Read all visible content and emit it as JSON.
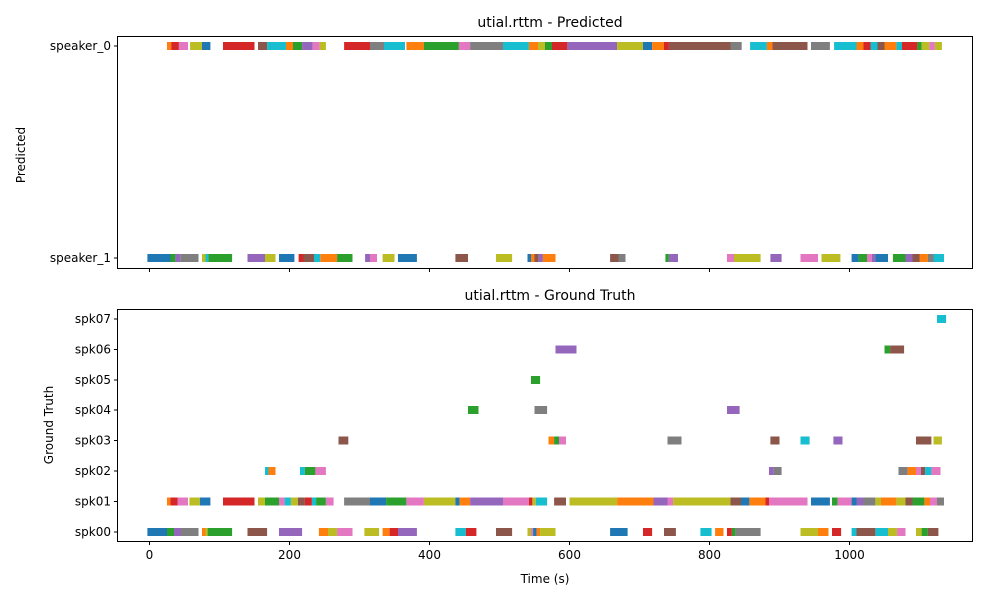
{
  "chart_data": [
    {
      "type": "timeline",
      "title": "utial.rttm - Predicted",
      "xlabel": "",
      "ylabel": "Predicted",
      "xlim": [
        -45,
        1175
      ],
      "xticks": [
        0,
        200,
        400,
        600,
        800,
        1000
      ],
      "show_x_tick_labels": false,
      "grid": false,
      "legend": "none",
      "rows": [
        "speaker_1",
        "speaker_0"
      ],
      "segments": [
        [
          1,
          25,
          31,
          "#ff7f0e"
        ],
        [
          1,
          31,
          42,
          "#d62728"
        ],
        [
          1,
          42,
          55,
          "#e377c2"
        ],
        [
          1,
          58,
          75,
          "#bcbd22"
        ],
        [
          1,
          75,
          87,
          "#1f77b4"
        ],
        [
          1,
          105,
          150,
          "#d62728"
        ],
        [
          1,
          155,
          168,
          "#8c564b"
        ],
        [
          1,
          168,
          195,
          "#17becf"
        ],
        [
          1,
          195,
          205,
          "#ff7f0e"
        ],
        [
          1,
          205,
          218,
          "#2ca02c"
        ],
        [
          1,
          218,
          233,
          "#9467bd"
        ],
        [
          1,
          233,
          243,
          "#e377c2"
        ],
        [
          1,
          243,
          252,
          "#bcbd22"
        ],
        [
          1,
          278,
          315,
          "#d62728"
        ],
        [
          1,
          315,
          335,
          "#7f7f7f"
        ],
        [
          1,
          335,
          365,
          "#17becf"
        ],
        [
          1,
          367,
          392,
          "#ff7f0e"
        ],
        [
          1,
          392,
          442,
          "#2ca02c"
        ],
        [
          1,
          442,
          458,
          "#e377c2"
        ],
        [
          1,
          458,
          505,
          "#7f7f7f"
        ],
        [
          1,
          505,
          542,
          "#17becf"
        ],
        [
          1,
          542,
          555,
          "#ff7f0e"
        ],
        [
          1,
          555,
          565,
          "#bcbd22"
        ],
        [
          1,
          565,
          575,
          "#2ca02c"
        ],
        [
          1,
          575,
          597,
          "#d62728"
        ],
        [
          1,
          597,
          668,
          "#9467bd"
        ],
        [
          1,
          668,
          705,
          "#bcbd22"
        ],
        [
          1,
          705,
          718,
          "#1f77b4"
        ],
        [
          1,
          718,
          735,
          "#ff7f0e"
        ],
        [
          1,
          735,
          742,
          "#d62728"
        ],
        [
          1,
          742,
          830,
          "#8c564b"
        ],
        [
          1,
          830,
          846,
          "#7f7f7f"
        ],
        [
          1,
          858,
          882,
          "#17becf"
        ],
        [
          1,
          882,
          890,
          "#ff7f0e"
        ],
        [
          1,
          890,
          940,
          "#8c564b"
        ],
        [
          1,
          945,
          972,
          "#7f7f7f"
        ],
        [
          1,
          978,
          1010,
          "#17becf"
        ],
        [
          1,
          1010,
          1020,
          "#ff7f0e"
        ],
        [
          1,
          1020,
          1030,
          "#d62728"
        ],
        [
          1,
          1030,
          1040,
          "#17becf"
        ],
        [
          1,
          1040,
          1050,
          "#8c564b"
        ],
        [
          1,
          1050,
          1067,
          "#ff7f0e"
        ],
        [
          1,
          1067,
          1075,
          "#17becf"
        ],
        [
          1,
          1075,
          1097,
          "#d62728"
        ],
        [
          1,
          1097,
          1103,
          "#2ca02c"
        ],
        [
          1,
          1103,
          1114,
          "#bcbd22"
        ],
        [
          1,
          1114,
          1122,
          "#e377c2"
        ],
        [
          1,
          1122,
          1132,
          "#bcbd22"
        ],
        [
          0,
          -3,
          30,
          "#1f77b4"
        ],
        [
          0,
          30,
          37,
          "#2ca02c"
        ],
        [
          0,
          37,
          44,
          "#9467bd"
        ],
        [
          0,
          44,
          70,
          "#7f7f7f"
        ],
        [
          0,
          75,
          80,
          "#bcbd22"
        ],
        [
          0,
          80,
          84,
          "#17becf"
        ],
        [
          0,
          84,
          118,
          "#2ca02c"
        ],
        [
          0,
          140,
          165,
          "#9467bd"
        ],
        [
          0,
          165,
          180,
          "#bcbd22"
        ],
        [
          0,
          185,
          207,
          "#1f77b4"
        ],
        [
          0,
          213,
          220,
          "#d62728"
        ],
        [
          0,
          220,
          235,
          "#8c564b"
        ],
        [
          0,
          235,
          244,
          "#17becf"
        ],
        [
          0,
          244,
          268,
          "#ff7f0e"
        ],
        [
          0,
          268,
          290,
          "#2ca02c"
        ],
        [
          0,
          308,
          315,
          "#9467bd"
        ],
        [
          0,
          315,
          325,
          "#e377c2"
        ],
        [
          0,
          333,
          350,
          "#bcbd22"
        ],
        [
          0,
          355,
          382,
          "#1f77b4"
        ],
        [
          0,
          437,
          455,
          "#8c564b"
        ],
        [
          0,
          495,
          518,
          "#bcbd22"
        ],
        [
          0,
          540,
          545,
          "#1f77b4"
        ],
        [
          0,
          545,
          550,
          "#ff7f0e"
        ],
        [
          0,
          550,
          556,
          "#8c564b"
        ],
        [
          0,
          556,
          562,
          "#9467bd"
        ],
        [
          0,
          562,
          580,
          "#ff7f0e"
        ],
        [
          0,
          658,
          670,
          "#8c564b"
        ],
        [
          0,
          670,
          680,
          "#7f7f7f"
        ],
        [
          0,
          737,
          742,
          "#2ca02c"
        ],
        [
          0,
          742,
          755,
          "#9467bd"
        ],
        [
          0,
          825,
          835,
          "#e377c2"
        ],
        [
          0,
          835,
          873,
          "#bcbd22"
        ],
        [
          0,
          887,
          903,
          "#9467bd"
        ],
        [
          0,
          930,
          955,
          "#e377c2"
        ],
        [
          0,
          960,
          987,
          "#bcbd22"
        ],
        [
          0,
          1003,
          1013,
          "#1f77b4"
        ],
        [
          0,
          1013,
          1025,
          "#2ca02c"
        ],
        [
          0,
          1025,
          1032,
          "#e377c2"
        ],
        [
          0,
          1032,
          1037,
          "#9467bd"
        ],
        [
          0,
          1037,
          1055,
          "#1f77b4"
        ],
        [
          0,
          1062,
          1080,
          "#2ca02c"
        ],
        [
          0,
          1080,
          1090,
          "#9467bd"
        ],
        [
          0,
          1090,
          1100,
          "#8c564b"
        ],
        [
          0,
          1100,
          1112,
          "#ff7f0e"
        ],
        [
          0,
          1112,
          1120,
          "#7f7f7f"
        ],
        [
          0,
          1120,
          1135,
          "#17becf"
        ]
      ]
    },
    {
      "type": "timeline",
      "title": "utial.rttm - Ground Truth",
      "xlabel": "Time (s)",
      "ylabel": "Ground Truth",
      "xlim": [
        -45,
        1175
      ],
      "xticks": [
        0,
        200,
        400,
        600,
        800,
        1000
      ],
      "show_x_tick_labels": true,
      "grid": false,
      "legend": "none",
      "rows": [
        "spk00",
        "spk01",
        "spk02",
        "spk03",
        "spk04",
        "spk05",
        "spk06",
        "spk07"
      ],
      "segments": [
        [
          7,
          1125,
          1138,
          "#17becf"
        ],
        [
          6,
          580,
          610,
          "#9467bd"
        ],
        [
          6,
          1050,
          1058,
          "#2ca02c"
        ],
        [
          6,
          1058,
          1078,
          "#8c564b"
        ],
        [
          5,
          545,
          558,
          "#2ca02c"
        ],
        [
          4,
          455,
          470,
          "#2ca02c"
        ],
        [
          4,
          550,
          568,
          "#7f7f7f"
        ],
        [
          4,
          825,
          843,
          "#9467bd"
        ],
        [
          3,
          270,
          284,
          "#8c564b"
        ],
        [
          3,
          570,
          578,
          "#ff7f0e"
        ],
        [
          3,
          578,
          585,
          "#2ca02c"
        ],
        [
          3,
          585,
          595,
          "#e377c2"
        ],
        [
          3,
          740,
          760,
          "#7f7f7f"
        ],
        [
          3,
          887,
          900,
          "#8c564b"
        ],
        [
          3,
          930,
          943,
          "#17becf"
        ],
        [
          3,
          977,
          990,
          "#9467bd"
        ],
        [
          3,
          1095,
          1117,
          "#8c564b"
        ],
        [
          3,
          1120,
          1132,
          "#bcbd22"
        ],
        [
          2,
          165,
          170,
          "#17becf"
        ],
        [
          2,
          170,
          180,
          "#ff7f0e"
        ],
        [
          2,
          215,
          222,
          "#17becf"
        ],
        [
          2,
          222,
          237,
          "#2ca02c"
        ],
        [
          2,
          237,
          252,
          "#e377c2"
        ],
        [
          2,
          885,
          892,
          "#9467bd"
        ],
        [
          2,
          892,
          903,
          "#7f7f7f"
        ],
        [
          2,
          1070,
          1083,
          "#7f7f7f"
        ],
        [
          2,
          1083,
          1095,
          "#ff7f0e"
        ],
        [
          2,
          1095,
          1102,
          "#e377c2"
        ],
        [
          2,
          1102,
          1108,
          "#8c564b"
        ],
        [
          2,
          1108,
          1117,
          "#17becf"
        ],
        [
          2,
          1117,
          1130,
          "#e377c2"
        ],
        [
          1,
          25,
          30,
          "#ff7f0e"
        ],
        [
          1,
          30,
          40,
          "#d62728"
        ],
        [
          1,
          40,
          55,
          "#e377c2"
        ],
        [
          1,
          57,
          72,
          "#bcbd22"
        ],
        [
          1,
          72,
          87,
          "#1f77b4"
        ],
        [
          1,
          105,
          150,
          "#d62728"
        ],
        [
          1,
          155,
          165,
          "#bcbd22"
        ],
        [
          1,
          165,
          185,
          "#2ca02c"
        ],
        [
          1,
          185,
          193,
          "#e377c2"
        ],
        [
          1,
          193,
          202,
          "#17becf"
        ],
        [
          1,
          202,
          212,
          "#bcbd22"
        ],
        [
          1,
          212,
          222,
          "#8c564b"
        ],
        [
          1,
          222,
          232,
          "#d62728"
        ],
        [
          1,
          232,
          238,
          "#17becf"
        ],
        [
          1,
          238,
          252,
          "#2ca02c"
        ],
        [
          1,
          252,
          263,
          "#e377c2"
        ],
        [
          1,
          278,
          315,
          "#7f7f7f"
        ],
        [
          1,
          315,
          338,
          "#1f77b4"
        ],
        [
          1,
          338,
          367,
          "#2ca02c"
        ],
        [
          1,
          367,
          392,
          "#e377c2"
        ],
        [
          1,
          392,
          437,
          "#bcbd22"
        ],
        [
          1,
          437,
          443,
          "#1f77b4"
        ],
        [
          1,
          443,
          458,
          "#ff7f0e"
        ],
        [
          1,
          458,
          505,
          "#9467bd"
        ],
        [
          1,
          505,
          542,
          "#e377c2"
        ],
        [
          1,
          542,
          547,
          "#d62728"
        ],
        [
          1,
          547,
          552,
          "#bcbd22"
        ],
        [
          1,
          552,
          568,
          "#17becf"
        ],
        [
          1,
          578,
          595,
          "#8c564b"
        ],
        [
          1,
          600,
          668,
          "#bcbd22"
        ],
        [
          1,
          668,
          720,
          "#ff7f0e"
        ],
        [
          1,
          720,
          740,
          "#9467bd"
        ],
        [
          1,
          740,
          748,
          "#e377c2"
        ],
        [
          1,
          748,
          830,
          "#bcbd22"
        ],
        [
          1,
          830,
          845,
          "#8c564b"
        ],
        [
          1,
          845,
          857,
          "#1f77b4"
        ],
        [
          1,
          857,
          880,
          "#ff7f0e"
        ],
        [
          1,
          880,
          885,
          "#d62728"
        ],
        [
          1,
          885,
          940,
          "#e377c2"
        ],
        [
          1,
          945,
          972,
          "#1f77b4"
        ],
        [
          1,
          975,
          983,
          "#2ca02c"
        ],
        [
          1,
          983,
          1003,
          "#e377c2"
        ],
        [
          1,
          1003,
          1010,
          "#1f77b4"
        ],
        [
          1,
          1010,
          1020,
          "#9467bd"
        ],
        [
          1,
          1020,
          1037,
          "#7f7f7f"
        ],
        [
          1,
          1037,
          1045,
          "#bcbd22"
        ],
        [
          1,
          1045,
          1067,
          "#ff7f0e"
        ],
        [
          1,
          1067,
          1080,
          "#bcbd22"
        ],
        [
          1,
          1080,
          1090,
          "#8c564b"
        ],
        [
          1,
          1090,
          1107,
          "#2ca02c"
        ],
        [
          1,
          1107,
          1115,
          "#ff7f0e"
        ],
        [
          1,
          1115,
          1125,
          "#e377c2"
        ],
        [
          1,
          1125,
          1135,
          "#7f7f7f"
        ],
        [
          0,
          -3,
          25,
          "#1f77b4"
        ],
        [
          0,
          25,
          35,
          "#2ca02c"
        ],
        [
          0,
          35,
          45,
          "#9467bd"
        ],
        [
          0,
          45,
          70,
          "#7f7f7f"
        ],
        [
          0,
          75,
          80,
          "#ff7f0e"
        ],
        [
          0,
          80,
          83,
          "#bcbd22"
        ],
        [
          0,
          83,
          118,
          "#2ca02c"
        ],
        [
          0,
          140,
          168,
          "#8c564b"
        ],
        [
          0,
          185,
          218,
          "#9467bd"
        ],
        [
          0,
          242,
          255,
          "#ff7f0e"
        ],
        [
          0,
          255,
          268,
          "#bcbd22"
        ],
        [
          0,
          268,
          290,
          "#e377c2"
        ],
        [
          0,
          307,
          328,
          "#bcbd22"
        ],
        [
          0,
          333,
          343,
          "#ff7f0e"
        ],
        [
          0,
          343,
          355,
          "#d62728"
        ],
        [
          0,
          355,
          382,
          "#9467bd"
        ],
        [
          0,
          437,
          452,
          "#17becf"
        ],
        [
          0,
          452,
          467,
          "#d62728"
        ],
        [
          0,
          495,
          518,
          "#8c564b"
        ],
        [
          0,
          540,
          545,
          "#bcbd22"
        ],
        [
          0,
          545,
          548,
          "#e377c2"
        ],
        [
          0,
          548,
          553,
          "#1f77b4"
        ],
        [
          0,
          553,
          558,
          "#ff7f0e"
        ],
        [
          0,
          558,
          580,
          "#bcbd22"
        ],
        [
          0,
          658,
          683,
          "#1f77b4"
        ],
        [
          0,
          705,
          718,
          "#d62728"
        ],
        [
          0,
          735,
          752,
          "#8c564b"
        ],
        [
          0,
          787,
          803,
          "#17becf"
        ],
        [
          0,
          808,
          820,
          "#ff7f0e"
        ],
        [
          0,
          825,
          832,
          "#d62728"
        ],
        [
          0,
          832,
          837,
          "#2ca02c"
        ],
        [
          0,
          837,
          873,
          "#7f7f7f"
        ],
        [
          0,
          930,
          955,
          "#bcbd22"
        ],
        [
          0,
          955,
          970,
          "#ff7f0e"
        ],
        [
          0,
          975,
          988,
          "#d62728"
        ],
        [
          0,
          1003,
          1010,
          "#17becf"
        ],
        [
          0,
          1010,
          1037,
          "#8c564b"
        ],
        [
          0,
          1037,
          1055,
          "#17becf"
        ],
        [
          0,
          1055,
          1068,
          "#bcbd22"
        ],
        [
          0,
          1068,
          1080,
          "#e377c2"
        ],
        [
          0,
          1095,
          1103,
          "#bcbd22"
        ],
        [
          0,
          1103,
          1112,
          "#2ca02c"
        ],
        [
          0,
          1112,
          1127,
          "#8c564b"
        ]
      ]
    }
  ]
}
